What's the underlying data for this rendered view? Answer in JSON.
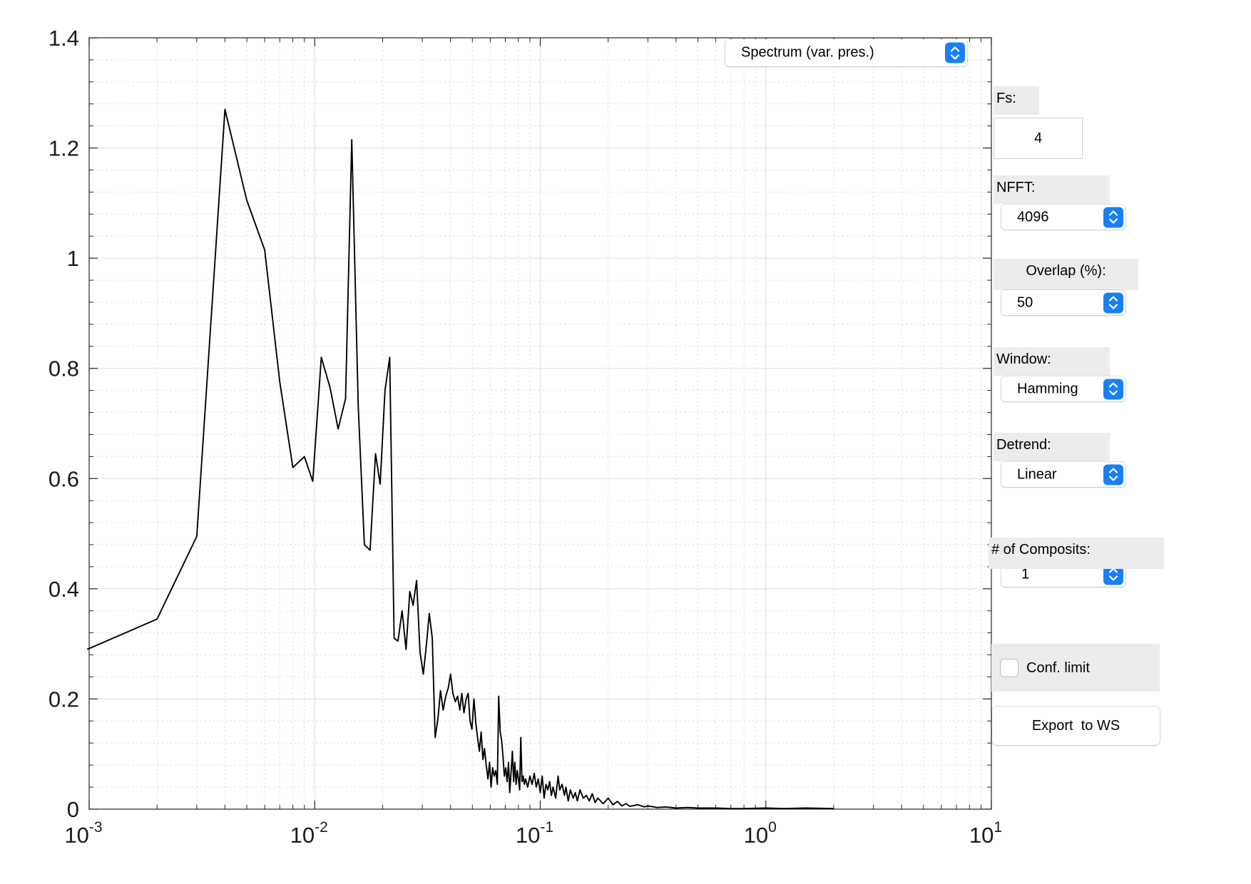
{
  "controls": {
    "plot_type": {
      "value": "Spectrum (var. pres.)"
    },
    "fs": {
      "label": "Fs:",
      "value": "4"
    },
    "nfft": {
      "label": "NFFT:",
      "value": "4096"
    },
    "overlap": {
      "label": "Overlap (%):",
      "value": "50"
    },
    "window": {
      "label": "Window:",
      "value": "Hamming"
    },
    "detrend": {
      "label": "Detrend:",
      "value": "Linear"
    },
    "composits": {
      "label": "# of Composits:",
      "value": "1"
    },
    "conf_limit": {
      "label": "Conf. limit",
      "checked": false
    },
    "export": {
      "label": "Export  to WS"
    }
  },
  "chart_data": {
    "type": "line",
    "title": "",
    "xlabel": "",
    "ylabel": "",
    "xscale": "log",
    "xlim": [
      0.001,
      10
    ],
    "ylim": [
      0,
      1.4
    ],
    "grid": true,
    "minor_grid": true,
    "x_ticks": [
      {
        "base": "10",
        "exp": "-3"
      },
      {
        "base": "10",
        "exp": "-2"
      },
      {
        "base": "10",
        "exp": "-1"
      },
      {
        "base": "10",
        "exp": "0"
      },
      {
        "base": "10",
        "exp": "1"
      }
    ],
    "y_ticks": [
      "0",
      "0.2",
      "0.4",
      "0.6",
      "0.8",
      "1",
      "1.2",
      "1.4"
    ],
    "series": [
      {
        "color": "#000000",
        "x": [
          0.00098,
          0.002,
          0.003,
          0.004,
          0.005,
          0.006,
          0.007,
          0.008,
          0.009,
          0.0098,
          0.0107,
          0.0117,
          0.0127,
          0.0137,
          0.0146,
          0.0156,
          0.0166,
          0.0176,
          0.0186,
          0.0195,
          0.0205,
          0.0215,
          0.0225,
          0.0234,
          0.0244,
          0.0254,
          0.0264,
          0.0273,
          0.0283,
          0.0293,
          0.0303,
          0.0313,
          0.0322,
          0.0332,
          0.0342,
          0.0352,
          0.0361,
          0.0371,
          0.0381,
          0.0391,
          0.04,
          0.041,
          0.042,
          0.043,
          0.044,
          0.0449,
          0.0459,
          0.0469,
          0.0479,
          0.0488,
          0.0498,
          0.0508,
          0.0518,
          0.0527,
          0.0537,
          0.0547,
          0.0557,
          0.0566,
          0.0576,
          0.0586,
          0.0596,
          0.0605,
          0.0615,
          0.0625,
          0.0635,
          0.0645,
          0.0654,
          0.0664,
          0.0674,
          0.0684,
          0.0693,
          0.0703,
          0.0713,
          0.0723,
          0.0732,
          0.0742,
          0.0752,
          0.0762,
          0.0771,
          0.0781,
          0.0791,
          0.08,
          0.081,
          0.082,
          0.083,
          0.084,
          0.085,
          0.086,
          0.088,
          0.09,
          0.092,
          0.094,
          0.096,
          0.098,
          0.1,
          0.102,
          0.104,
          0.106,
          0.108,
          0.11,
          0.112,
          0.114,
          0.117,
          0.12,
          0.122,
          0.125,
          0.128,
          0.13,
          0.133,
          0.136,
          0.14,
          0.143,
          0.146,
          0.15,
          0.155,
          0.16,
          0.165,
          0.17,
          0.175,
          0.18,
          0.19,
          0.2,
          0.21,
          0.22,
          0.23,
          0.24,
          0.25,
          0.27,
          0.29,
          0.3,
          0.33,
          0.36,
          0.4,
          0.45,
          0.5,
          0.6,
          0.7,
          0.8,
          1.0,
          1.2,
          1.5,
          2.0
        ],
        "y": [
          0.29,
          0.345,
          0.495,
          1.27,
          1.105,
          1.015,
          0.775,
          0.62,
          0.64,
          0.595,
          0.82,
          0.765,
          0.69,
          0.745,
          1.215,
          0.73,
          0.48,
          0.47,
          0.645,
          0.59,
          0.76,
          0.82,
          0.31,
          0.305,
          0.36,
          0.29,
          0.395,
          0.37,
          0.415,
          0.285,
          0.245,
          0.3,
          0.355,
          0.31,
          0.13,
          0.165,
          0.215,
          0.18,
          0.205,
          0.22,
          0.245,
          0.21,
          0.195,
          0.205,
          0.18,
          0.21,
          0.175,
          0.2,
          0.21,
          0.16,
          0.145,
          0.2,
          0.155,
          0.13,
          0.105,
          0.14,
          0.09,
          0.11,
          0.08,
          0.055,
          0.085,
          0.04,
          0.075,
          0.06,
          0.07,
          0.045,
          0.205,
          0.14,
          0.125,
          0.095,
          0.06,
          0.075,
          0.05,
          0.085,
          0.03,
          0.065,
          0.105,
          0.05,
          0.085,
          0.045,
          0.07,
          0.055,
          0.035,
          0.13,
          0.05,
          0.06,
          0.045,
          0.055,
          0.04,
          0.06,
          0.045,
          0.065,
          0.04,
          0.055,
          0.03,
          0.06,
          0.02,
          0.045,
          0.035,
          0.05,
          0.025,
          0.04,
          0.02,
          0.06,
          0.035,
          0.045,
          0.025,
          0.04,
          0.015,
          0.035,
          0.02,
          0.03,
          0.015,
          0.035,
          0.02,
          0.025,
          0.015,
          0.028,
          0.012,
          0.02,
          0.01,
          0.02,
          0.008,
          0.014,
          0.006,
          0.01,
          0.005,
          0.008,
          0.004,
          0.006,
          0.003,
          0.004,
          0.002,
          0.003,
          0.002,
          0.002,
          0.001,
          0.001,
          0.002,
          0.001,
          0.002,
          0.001
        ]
      }
    ]
  },
  "icon_color": "#1a7ff5"
}
